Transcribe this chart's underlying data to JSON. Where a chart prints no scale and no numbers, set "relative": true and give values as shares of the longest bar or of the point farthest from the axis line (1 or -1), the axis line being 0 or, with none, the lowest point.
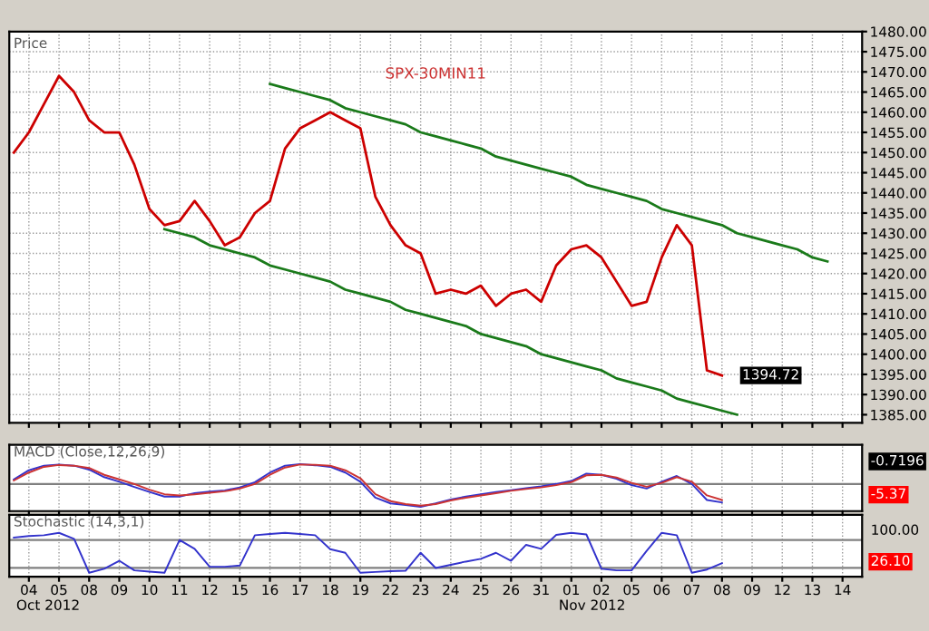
{
  "chart_data": [
    {
      "type": "line",
      "title": "Price",
      "ylim": [
        1383,
        1480
      ],
      "categories": [
        null,
        "04",
        null,
        "05",
        null,
        "08",
        null,
        "09",
        null,
        "10",
        null,
        "11",
        null,
        "12",
        null,
        "15",
        null,
        "16",
        null,
        "17",
        null,
        "18",
        null,
        "19",
        null,
        "22",
        null,
        "23",
        null,
        "24",
        null,
        "25",
        null,
        "26",
        null,
        "31",
        null,
        "01",
        null,
        "02",
        null,
        "05",
        null,
        "06",
        null,
        "07",
        null,
        "08",
        null,
        "09",
        null,
        "12",
        null,
        "13",
        null,
        "14",
        null
      ],
      "yticks": [
        {
          "value": 1385,
          "label": "1385.00"
        },
        {
          "value": 1390,
          "label": "1390.00"
        },
        {
          "value": 1395,
          "label": "1395.00"
        },
        {
          "value": 1400,
          "label": "1400.00"
        },
        {
          "value": 1405,
          "label": "1405.00"
        },
        {
          "value": 1410,
          "label": "1410.00"
        },
        {
          "value": 1415,
          "label": "1415.00"
        },
        {
          "value": 1420,
          "label": "1420.00"
        },
        {
          "value": 1425,
          "label": "1425.00"
        },
        {
          "value": 1430,
          "label": "1430.00"
        },
        {
          "value": 1435,
          "label": "1435.00"
        },
        {
          "value": 1440,
          "label": "1440.00"
        },
        {
          "value": 1445,
          "label": "1445.00"
        },
        {
          "value": 1450,
          "label": "1450.00"
        },
        {
          "value": 1455,
          "label": "1455.00"
        },
        {
          "value": 1460,
          "label": "1460.00"
        },
        {
          "value": 1465,
          "label": "1465.00"
        },
        {
          "value": 1470,
          "label": "1470.00"
        },
        {
          "value": 1475,
          "label": "1475.00"
        },
        {
          "value": 1480,
          "label": "1480.00"
        }
      ],
      "tick_labels": "y",
      "grid": true,
      "annotations": [
        "SPX-30MIN11"
      ],
      "series": [
        {
          "color": "#cc0000",
          "values": [
            1450,
            1455,
            1462,
            1469,
            1465,
            1458,
            1455,
            1455,
            1447,
            1436,
            1432,
            1433,
            1438,
            1433,
            1427,
            1429,
            1435,
            1438,
            1451,
            1456,
            1458,
            1460,
            1458,
            1456,
            1439,
            1432,
            1427,
            1425,
            1415,
            1416,
            1415,
            1417,
            1412,
            1415,
            1416,
            1413,
            1422,
            1426,
            1427,
            1424,
            1418,
            1412,
            1413,
            1424,
            1432,
            1427,
            1396,
            1394.72,
            null,
            null,
            null,
            null,
            null,
            null,
            null,
            null,
            null
          ],
          "value_labels": [
            null,
            null,
            null,
            null,
            null,
            null,
            null,
            null,
            null,
            null,
            null,
            null,
            null,
            null,
            null,
            null,
            null,
            null,
            null,
            null,
            null,
            null,
            null,
            null,
            null,
            null,
            null,
            null,
            null,
            null,
            null,
            null,
            null,
            null,
            null,
            null,
            null,
            null,
            null,
            null,
            null,
            null,
            null,
            null,
            null,
            null,
            null,
            "1394.72",
            null,
            null,
            null,
            null,
            null,
            null,
            null,
            null,
            null
          ]
        },
        {
          "color": "#1a7a1a",
          "values": [
            null,
            null,
            null,
            null,
            null,
            null,
            null,
            null,
            null,
            null,
            null,
            null,
            null,
            null,
            null,
            null,
            null,
            1467,
            1466,
            1465,
            1464,
            1463,
            1461,
            1460,
            1459,
            1458,
            1457,
            1455,
            1454,
            1453,
            1452,
            1451,
            1449,
            1448,
            1447,
            1446,
            1445,
            1444,
            1442,
            1441,
            1440,
            1439,
            1438,
            1436,
            1435,
            1434,
            1433,
            1432,
            1430,
            1429,
            1428,
            1427,
            1426,
            1424,
            1423,
            null,
            null
          ]
        },
        {
          "color": "#1a7a1a",
          "values": [
            null,
            null,
            null,
            null,
            null,
            null,
            null,
            null,
            null,
            null,
            1431,
            1430,
            1429,
            1427,
            1426,
            1425,
            1424,
            1422,
            1421,
            1420,
            1419,
            1418,
            1416,
            1415,
            1414,
            1413,
            1411,
            1410,
            1409,
            1408,
            1407,
            1405,
            1404,
            1403,
            1402,
            1400,
            1399,
            1398,
            1397,
            1396,
            1394,
            1393,
            1392,
            1391,
            1389,
            1388,
            1387,
            1386,
            1385,
            null,
            null,
            null,
            null,
            null,
            null,
            null,
            null
          ]
        }
      ]
    },
    {
      "type": "line",
      "title": "MACD (Close,12,26,9)",
      "relative": true,
      "tick_labels": false,
      "grid": true,
      "categories": [
        null,
        "04",
        null,
        "05",
        null,
        "08",
        null,
        "09",
        null,
        "10",
        null,
        "11",
        null,
        "12",
        null,
        "15",
        null,
        "16",
        null,
        "17",
        null,
        "18",
        null,
        "19",
        null,
        "22",
        null,
        "23",
        null,
        "24",
        null,
        "25",
        null,
        "26",
        null,
        "31",
        null,
        "01",
        null,
        "02",
        null,
        "05",
        null,
        "06",
        null,
        "07",
        null,
        "08",
        null,
        "09",
        null,
        "12",
        null,
        "13",
        null,
        "14",
        null
      ],
      "annotations": [
        "-0.7196",
        "-5.37"
      ],
      "ref_lines": [
        {
          "axis": "y",
          "value": 0,
          "color": "#808080"
        }
      ],
      "series": [
        {
          "color": "#3333cc",
          "values": [
            0.2,
            0.6,
            0.8,
            0.85,
            0.8,
            0.63,
            0.3,
            0.1,
            -0.13,
            -0.35,
            -0.55,
            -0.55,
            -0.4,
            -0.33,
            -0.28,
            -0.15,
            0.08,
            0.5,
            0.8,
            0.87,
            0.82,
            0.75,
            0.5,
            0.1,
            -0.6,
            -0.85,
            -0.92,
            -1,
            -0.85,
            -0.68,
            -0.55,
            -0.45,
            -0.35,
            -0.27,
            -0.18,
            -0.1,
            0,
            0.13,
            0.45,
            0.4,
            0.23,
            -0.05,
            -0.2,
            0.1,
            0.35,
            0,
            -0.7,
            -0.81,
            null,
            null,
            null,
            null,
            null,
            null,
            null,
            null,
            null
          ]
        },
        {
          "color": "#cc3333",
          "values": [
            0.15,
            0.5,
            0.75,
            0.83,
            0.8,
            0.7,
            0.4,
            0.2,
            0,
            -0.25,
            -0.45,
            -0.5,
            -0.45,
            -0.38,
            -0.32,
            -0.2,
            0,
            0.4,
            0.72,
            0.85,
            0.84,
            0.8,
            0.6,
            0.25,
            -0.45,
            -0.75,
            -0.88,
            -0.95,
            -0.88,
            -0.72,
            -0.6,
            -0.5,
            -0.4,
            -0.3,
            -0.22,
            -0.15,
            -0.05,
            0.08,
            0.38,
            0.4,
            0.28,
            0.05,
            -0.12,
            0.05,
            0.3,
            0.1,
            -0.5,
            -0.7,
            null,
            null,
            null,
            null,
            null,
            null,
            null,
            null,
            null
          ]
        }
      ]
    },
    {
      "type": "line",
      "title": "Stochastic (14,3,1)",
      "relative": true,
      "tick_labels": "x",
      "grid": true,
      "categories": [
        null,
        "04",
        null,
        "05",
        null,
        "08",
        null,
        "09",
        null,
        "10",
        null,
        "11",
        null,
        "12",
        null,
        "15",
        null,
        "16",
        null,
        "17",
        null,
        "18",
        null,
        "19",
        null,
        "22",
        null,
        "23",
        null,
        "24",
        null,
        "25",
        null,
        "26",
        null,
        "31",
        null,
        "01",
        null,
        "02",
        null,
        "05",
        null,
        "06",
        null,
        "07",
        null,
        "08",
        null,
        "09",
        null,
        "12",
        null,
        "13",
        null,
        "14",
        null
      ],
      "annotations": [
        "100.00",
        "26.10",
        "Oct 2012",
        "Nov 2012"
      ],
      "ref_lines": [
        {
          "axis": "y",
          "value": 0.82,
          "color": "#808080"
        },
        {
          "axis": "y",
          "value": 0.12,
          "color": "#808080"
        }
      ],
      "series": [
        {
          "color": "#3333cc",
          "values": [
            0.88,
            0.92,
            0.94,
            1,
            0.85,
            0,
            0.1,
            0.3,
            0.06,
            0.03,
            0,
            0.82,
            0.6,
            0.15,
            0.15,
            0.18,
            0.94,
            0.97,
            1,
            0.97,
            0.94,
            0.59,
            0.5,
            0,
            0.02,
            0.04,
            0.05,
            0.5,
            0.12,
            0.2,
            0.28,
            0.35,
            0.5,
            0.3,
            0.7,
            0.6,
            0.95,
            1,
            0.96,
            0.1,
            0.06,
            0.06,
            0.55,
            1,
            0.94,
            0,
            0.08,
            0.24,
            null,
            null,
            null,
            null,
            null,
            null,
            null,
            null,
            null
          ]
        }
      ]
    }
  ]
}
